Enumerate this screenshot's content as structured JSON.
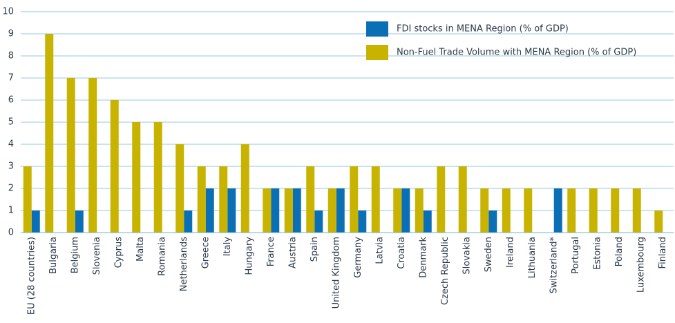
{
  "chart_data": {
    "type": "bar",
    "categories": [
      "EU (28 countries)",
      "Bulgaria",
      "Belgium",
      "Slovenia",
      "Cyprus",
      "Malta",
      "Romania",
      "Netherlands",
      "Greece",
      "Italy",
      "Hungary",
      "France",
      "Austria",
      "Spain",
      "United Kingdom",
      "Germany",
      "Latvia",
      "Croatia",
      "Denmark",
      "Czech Republic",
      "Slovakia",
      "Sweden",
      "Ireland",
      "Lithuania",
      "Switzerland*",
      "Portugal",
      "Estonia",
      "Poland",
      "Luxembourg",
      "Finland"
    ],
    "series": [
      {
        "name": "FDI stocks in MENA Region (% of GDP)",
        "color": "#0b6fb5",
        "values": [
          1,
          0,
          1,
          0,
          0,
          0,
          0,
          1,
          2,
          2,
          0,
          2,
          2,
          1,
          2,
          1,
          0,
          2,
          1,
          0,
          0,
          1,
          0,
          0,
          2,
          0,
          0,
          0,
          0,
          0
        ]
      },
      {
        "name": "Non-Fuel Trade Volume with MENA Region (% of GDP)",
        "color": "#c8b400",
        "values": [
          3,
          9,
          7,
          7,
          6,
          5,
          5,
          4,
          3,
          3,
          4,
          2,
          2,
          3,
          2,
          3,
          3,
          2,
          2,
          3,
          3,
          2,
          2,
          2,
          0,
          2,
          2,
          2,
          2,
          1
        ]
      }
    ],
    "ylim": [
      0,
      10
    ],
    "yticks": [
      0,
      1,
      2,
      3,
      4,
      5,
      6,
      7,
      8,
      9,
      10
    ],
    "grid": true,
    "legend": "top-right"
  }
}
